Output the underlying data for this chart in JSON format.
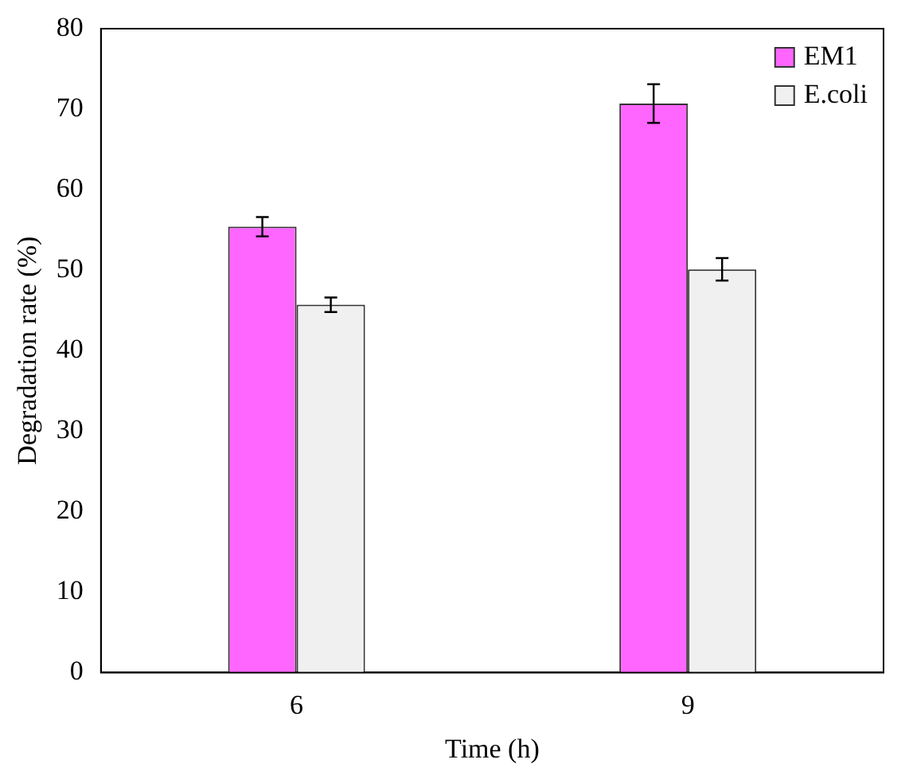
{
  "chart_data": {
    "type": "bar",
    "xlabel": "Time (h)",
    "ylabel": "Degradation rate (%)",
    "categories": [
      "6",
      "9"
    ],
    "series": [
      {
        "name": "EM1",
        "color": "#ff66ff",
        "values": [
          55.4,
          70.7
        ],
        "errors": [
          1.2,
          2.4
        ]
      },
      {
        "name": "E.coli",
        "color": "#f0f0f0",
        "values": [
          45.7,
          50.1
        ],
        "errors": [
          0.9,
          1.4
        ]
      }
    ],
    "ylim": [
      0,
      80
    ],
    "yticks": [
      0,
      10,
      20,
      30,
      40,
      50,
      60,
      70,
      80
    ],
    "grid": false,
    "legend": "top right"
  }
}
